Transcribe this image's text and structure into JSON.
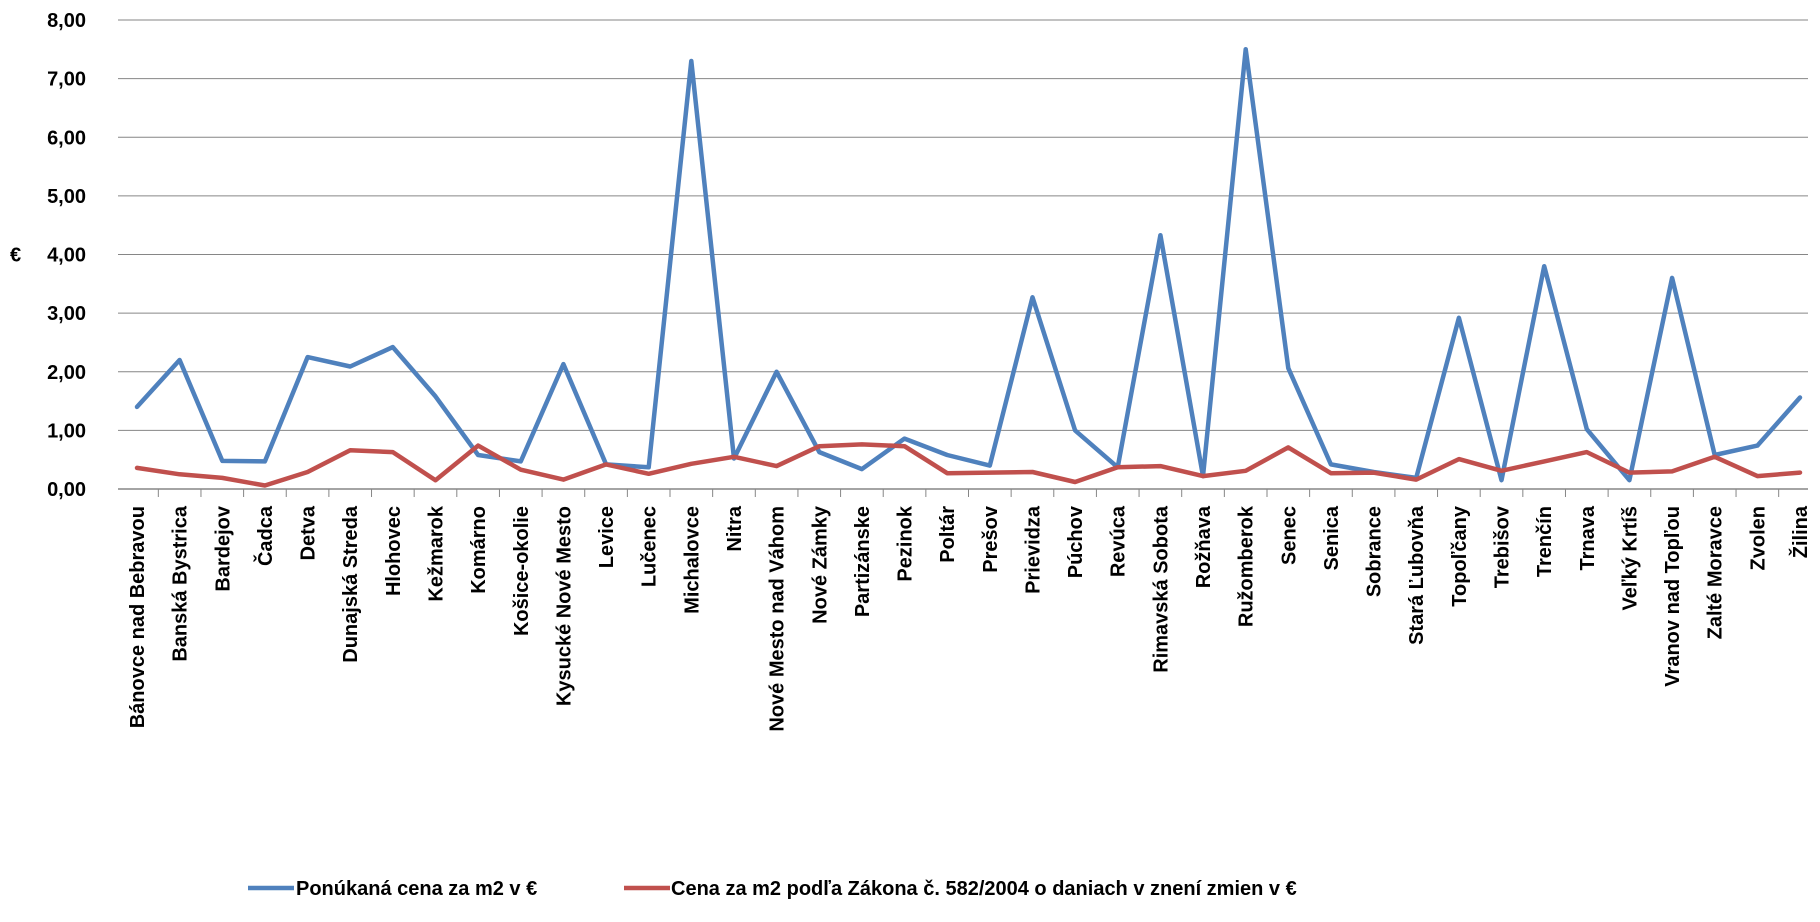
{
  "chart_data": {
    "type": "line",
    "ylabel": "€",
    "ylim": [
      0,
      8
    ],
    "y_ticks": [
      "0,00",
      "1,00",
      "2,00",
      "3,00",
      "4,00",
      "5,00",
      "6,00",
      "7,00",
      "8,00"
    ],
    "grid": true,
    "legend_position": "bottom",
    "categories": [
      "Bánovce nad Bebravou",
      "Banská Bystrica",
      "Bardejov",
      "Čadca",
      "Detva",
      "Dunajská Streda",
      "Hlohovec",
      "Kežmarok",
      "Komárno",
      "Košice-okolie",
      "Kysucké Nové Mesto",
      "Levice",
      "Lučenec",
      "Michalovce",
      "Nitra",
      "Nové Mesto nad Váhom",
      "Nové Zámky",
      "Partizánske",
      "Pezinok",
      "Poltár",
      "Prešov",
      "Prievidza",
      "Púchov",
      "Revúca",
      "Rimavská Sobota",
      "Rožňava",
      "Ružomberok",
      "Senec",
      "Senica",
      "Sobrance",
      "Stará Ľubovňa",
      "Topoľčany",
      "Trebišov",
      "Trenčín",
      "Trnava",
      "Veľký Krtíš",
      "Vranov nad Topľou",
      "Zalté Moravce",
      "Zvolen",
      "Žilina"
    ],
    "series": [
      {
        "name": "Ponúkaná cena za m2 v €",
        "color": "#4F81BD",
        "values": [
          1.4,
          2.2,
          0.48,
          0.47,
          2.25,
          2.09,
          2.42,
          1.58,
          0.58,
          0.47,
          2.13,
          0.42,
          0.37,
          7.3,
          0.52,
          2.0,
          0.63,
          0.34,
          0.86,
          0.58,
          0.4,
          3.27,
          1.0,
          0.37,
          4.33,
          0.22,
          7.5,
          2.06,
          0.42,
          0.29,
          0.19,
          2.92,
          0.15,
          3.8,
          1.02,
          0.15,
          3.6,
          0.58,
          0.74,
          1.56
        ]
      },
      {
        "name": "Cena za m2 podľa Zákona č. 582/2004 o  daniach v znení zmien v €",
        "color": "#C0504D",
        "values": [
          0.36,
          0.25,
          0.19,
          0.06,
          0.29,
          0.66,
          0.63,
          0.15,
          0.74,
          0.33,
          0.16,
          0.42,
          0.26,
          0.43,
          0.55,
          0.39,
          0.73,
          0.76,
          0.73,
          0.27,
          0.28,
          0.29,
          0.12,
          0.37,
          0.39,
          0.22,
          0.31,
          0.71,
          0.27,
          0.28,
          0.16,
          0.51,
          0.31,
          0.47,
          0.63,
          0.28,
          0.3,
          0.55,
          0.22,
          0.28
        ]
      }
    ]
  }
}
